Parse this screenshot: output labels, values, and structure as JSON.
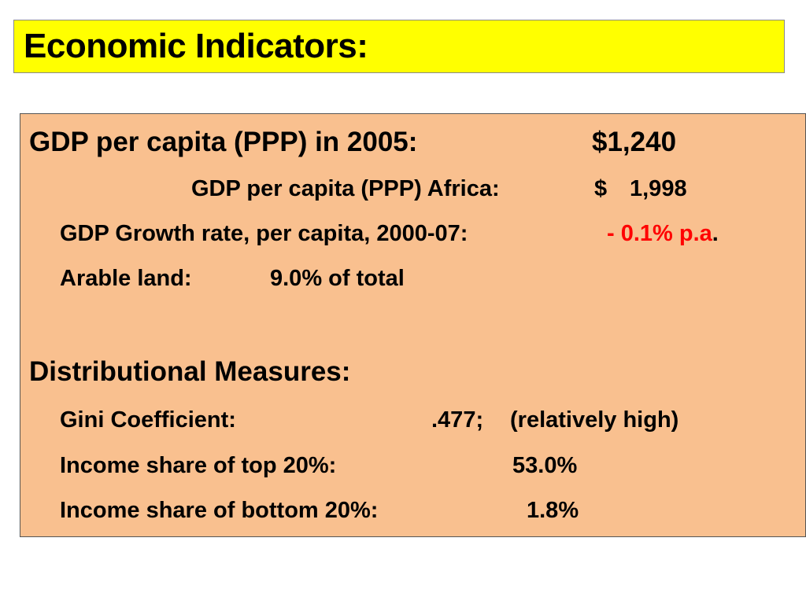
{
  "title": "Economic Indicators:",
  "gdp": {
    "label": "GDP per capita (PPP) in 2005:",
    "value": "$1,240"
  },
  "africa": {
    "label": "GDP per capita (PPP) Africa:",
    "currency": "$",
    "value": "1,998"
  },
  "growth": {
    "label": "GDP Growth rate, per capita, 2000-07:",
    "value": "- 0.1% p.a",
    "suffix": "."
  },
  "arable": {
    "label": "Arable land:",
    "value": "9.0% of total"
  },
  "distribution": {
    "heading": "Distributional Measures:",
    "gini_label": "Gini Coefficient:",
    "gini_value": ".477;",
    "gini_note": "(relatively high)",
    "top_label": "Income share of top 20%:",
    "top_value": "53.0%",
    "bottom_label": "Income share of bottom 20%:",
    "bottom_value": "1.8%"
  },
  "colors": {
    "title_bg": "#ffff00",
    "content_bg": "#f9c08f",
    "negative": "#ff0000"
  }
}
